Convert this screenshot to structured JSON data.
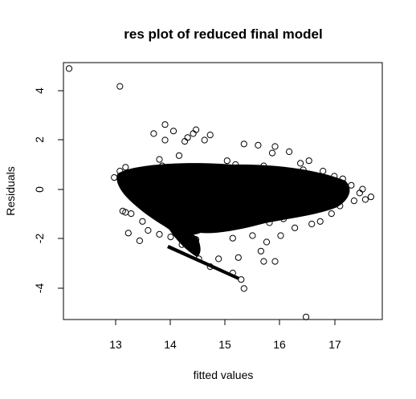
{
  "chart_data": {
    "type": "scatter",
    "title": "res plot of reduced final model",
    "xlabel": "fitted values",
    "ylabel": "Residuals",
    "xlim": [
      12.2,
      17.85
    ],
    "ylim": [
      -5.0,
      4.95
    ],
    "xticks": [
      "13",
      "14",
      "15",
      "16",
      "17"
    ],
    "yticks": [
      "-4",
      "-2",
      "0",
      "2",
      "4"
    ],
    "marker": "open-circle",
    "grid": false,
    "legend": "none",
    "points": [
      [
        12.3,
        4.72
      ],
      [
        13.2,
        4.03
      ],
      [
        16.5,
        -4.9
      ],
      [
        15.4,
        -3.8
      ],
      [
        15.35,
        -3.45
      ],
      [
        14.0,
        2.55
      ],
      [
        14.15,
        2.3
      ],
      [
        13.8,
        2.2
      ],
      [
        14.0,
        1.95
      ],
      [
        14.4,
        2.05
      ],
      [
        14.5,
        2.2
      ],
      [
        14.55,
        2.35
      ],
      [
        14.8,
        2.15
      ],
      [
        14.7,
        1.95
      ],
      [
        14.35,
        1.9
      ],
      [
        15.4,
        1.8
      ],
      [
        15.65,
        1.75
      ],
      [
        15.95,
        1.7
      ],
      [
        15.9,
        1.45
      ],
      [
        16.2,
        1.5
      ],
      [
        15.1,
        1.15
      ],
      [
        14.25,
        1.35
      ],
      [
        13.9,
        1.2
      ],
      [
        16.4,
        1.05
      ],
      [
        16.55,
        1.15
      ],
      [
        16.8,
        0.75
      ],
      [
        17.0,
        0.55
      ],
      [
        17.15,
        0.45
      ],
      [
        17.3,
        0.2
      ],
      [
        17.45,
        -0.1
      ],
      [
        17.55,
        -0.35
      ],
      [
        17.65,
        -0.25
      ],
      [
        17.35,
        -0.4
      ],
      [
        17.1,
        -0.6
      ],
      [
        16.95,
        -0.9
      ],
      [
        16.75,
        -1.2
      ],
      [
        16.6,
        -1.3
      ],
      [
        16.3,
        -1.45
      ],
      [
        16.05,
        -1.75
      ],
      [
        15.8,
        -2.0
      ],
      [
        15.7,
        -2.35
      ],
      [
        15.75,
        -2.75
      ],
      [
        15.95,
        -2.75
      ],
      [
        15.3,
        -2.6
      ],
      [
        15.2,
        -3.2
      ],
      [
        14.95,
        -2.65
      ],
      [
        14.8,
        -2.95
      ],
      [
        14.6,
        -2.65
      ],
      [
        14.5,
        -2.3
      ],
      [
        14.3,
        -2.1
      ],
      [
        14.1,
        -1.8
      ],
      [
        13.9,
        -1.7
      ],
      [
        13.7,
        -1.55
      ],
      [
        13.55,
        -1.95
      ],
      [
        13.35,
        -1.65
      ],
      [
        13.3,
        -0.85
      ],
      [
        13.25,
        -0.8
      ],
      [
        13.4,
        -0.9
      ],
      [
        13.1,
        0.5
      ],
      [
        13.2,
        0.75
      ],
      [
        13.3,
        0.9
      ],
      [
        13.5,
        0.6
      ],
      [
        13.45,
        -0.3
      ],
      [
        13.6,
        -1.2
      ],
      [
        14.45,
        -0.1
      ],
      [
        15.0,
        -1.2
      ],
      [
        15.5,
        -0.95
      ],
      [
        15.85,
        -1.25
      ],
      [
        16.1,
        -1.1
      ],
      [
        14.55,
        -1.9
      ],
      [
        14.75,
        -1.45
      ],
      [
        14.2,
        -1.3
      ],
      [
        15.2,
        -1.85
      ],
      [
        15.55,
        -1.75
      ],
      [
        16.45,
        0.8
      ],
      [
        15.75,
        0.95
      ],
      [
        15.25,
        1.0
      ],
      [
        14.65,
        0.85
      ],
      [
        13.95,
        0.95
      ],
      [
        17.5,
        0.05
      ]
    ]
  }
}
